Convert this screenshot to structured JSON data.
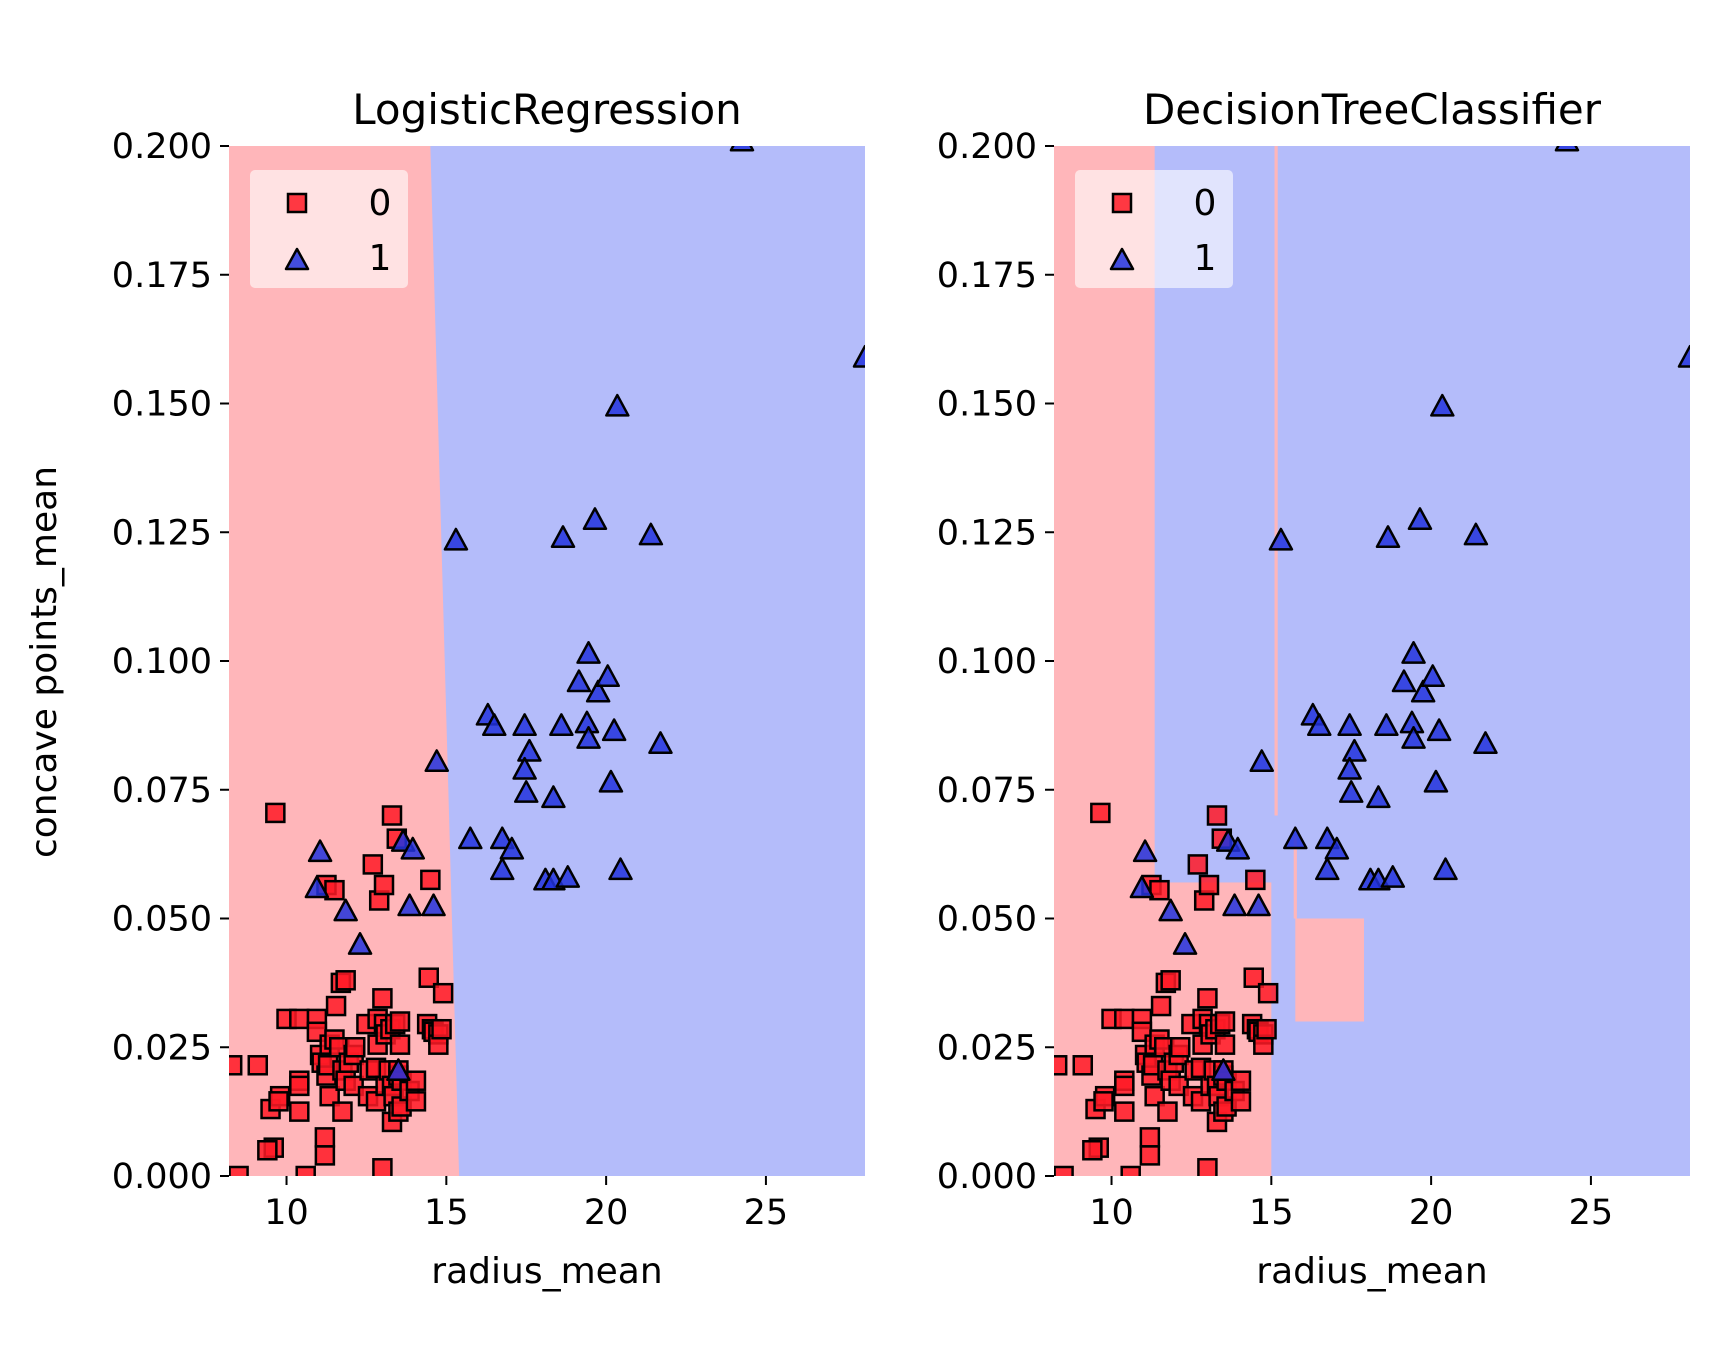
{
  "figure": {
    "ylabel": "concave points_mean"
  },
  "colors": {
    "class0_region": "#ffb6ba",
    "class1_region": "#b4bcfa",
    "class0_marker": "#ff1a26",
    "class1_marker": "#2233dd",
    "marker_edge": "#000000"
  },
  "chart_data": [
    {
      "type": "scatter",
      "title": "LogisticRegression",
      "xlabel": "radius_mean",
      "ylabel": "concave points_mean",
      "xlim": [
        8.2,
        28.1
      ],
      "ylim": [
        0.0,
        0.2
      ],
      "xticks": [
        10,
        15,
        20,
        25
      ],
      "xtick_labels": [
        "10",
        "15",
        "20",
        "25"
      ],
      "yticks": [
        0.0,
        0.025,
        0.05,
        0.075,
        0.1,
        0.125,
        0.15,
        0.175,
        0.2
      ],
      "ytick_labels": [
        "0.000",
        "0.025",
        "0.050",
        "0.075",
        "0.100",
        "0.125",
        "0.150",
        "0.175",
        "0.200"
      ],
      "legend": {
        "placement": "top-left",
        "entries": [
          {
            "label": "0",
            "marker": "square"
          },
          {
            "label": "1",
            "marker": "triangle"
          }
        ]
      },
      "decision_boundary": {
        "description": "class 0 region left of a near-vertical line",
        "boundary_x_at_y0": 15.4,
        "boundary_x_at_ymax": 14.5,
        "class0_regions": []
      }
    },
    {
      "type": "scatter",
      "title": "DecisionTreeClassifier",
      "xlabel": "radius_mean",
      "ylabel": "",
      "xlim": [
        8.2,
        28.1
      ],
      "ylim": [
        0.0,
        0.2
      ],
      "xticks": [
        10,
        15,
        20,
        25
      ],
      "xtick_labels": [
        "10",
        "15",
        "20",
        "25"
      ],
      "yticks": [
        0.0,
        0.025,
        0.05,
        0.075,
        0.1,
        0.125,
        0.15,
        0.175,
        0.2
      ],
      "ytick_labels": [
        "0.000",
        "0.025",
        "0.050",
        "0.075",
        "0.100",
        "0.125",
        "0.150",
        "0.175",
        "0.200"
      ],
      "legend": {
        "placement": "top-left",
        "entries": [
          {
            "label": "0",
            "marker": "square"
          },
          {
            "label": "1",
            "marker": "triangle"
          }
        ]
      },
      "decision_boundary": {
        "description": "axis-aligned class 0 regions",
        "class0_regions": [
          {
            "x": [
              8.2,
              11.35
            ],
            "y": [
              0.0,
              0.2
            ]
          },
          {
            "x": [
              8.2,
              15.0
            ],
            "y": [
              0.0,
              0.057
            ]
          },
          {
            "x": [
              15.75,
              17.9
            ],
            "y": [
              0.03,
              0.05
            ]
          },
          {
            "x": [
              15.1,
              15.2
            ],
            "y": [
              0.07,
              0.2
            ]
          },
          {
            "x": [
              15.7,
              15.8
            ],
            "y": [
              0.05,
              0.066
            ]
          }
        ]
      }
    }
  ],
  "points": {
    "class0": [
      [
        8.3,
        0.0215
      ],
      [
        8.5,
        0.0
      ],
      [
        9.1,
        0.0215
      ],
      [
        9.6,
        0.0055
      ],
      [
        9.65,
        0.0705
      ],
      [
        9.4,
        0.005
      ],
      [
        9.5,
        0.013
      ],
      [
        9.8,
        0.0155
      ],
      [
        9.75,
        0.0145
      ],
      [
        10.0,
        0.0305
      ],
      [
        10.4,
        0.0305
      ],
      [
        10.4,
        0.0185
      ],
      [
        10.4,
        0.0125
      ],
      [
        10.4,
        0.0175
      ],
      [
        10.6,
        0.0
      ],
      [
        10.95,
        0.0305
      ],
      [
        10.95,
        0.028
      ],
      [
        11.05,
        0.0235
      ],
      [
        11.2,
        0.0075
      ],
      [
        11.2,
        0.004
      ],
      [
        11.1,
        0.022
      ],
      [
        11.25,
        0.0195
      ],
      [
        11.3,
        0.0215
      ],
      [
        11.25,
        0.0565
      ],
      [
        11.5,
        0.0555
      ],
      [
        11.35,
        0.0155
      ],
      [
        11.35,
        0.0255
      ],
      [
        11.5,
        0.0265
      ],
      [
        11.55,
        0.033
      ],
      [
        11.65,
        0.025
      ],
      [
        11.7,
        0.0375
      ],
      [
        11.75,
        0.0125
      ],
      [
        11.75,
        0.0205
      ],
      [
        11.85,
        0.038
      ],
      [
        11.85,
        0.0185
      ],
      [
        11.95,
        0.022
      ],
      [
        12.1,
        0.0235
      ],
      [
        12.15,
        0.025
      ],
      [
        12.1,
        0.0175
      ],
      [
        12.5,
        0.0295
      ],
      [
        12.55,
        0.0155
      ],
      [
        12.6,
        0.0205
      ],
      [
        12.7,
        0.0605
      ],
      [
        12.8,
        0.021
      ],
      [
        12.8,
        0.0145
      ],
      [
        12.85,
        0.0255
      ],
      [
        12.85,
        0.0305
      ],
      [
        12.9,
        0.0535
      ],
      [
        13.0,
        0.0015
      ],
      [
        13.0,
        0.0345
      ],
      [
        13.05,
        0.0565
      ],
      [
        13.05,
        0.0295
      ],
      [
        13.1,
        0.0175
      ],
      [
        13.1,
        0.0275
      ],
      [
        13.2,
        0.0205
      ],
      [
        13.25,
        0.0285
      ],
      [
        13.3,
        0.07
      ],
      [
        13.3,
        0.0175
      ],
      [
        13.3,
        0.0105
      ],
      [
        13.35,
        0.0155
      ],
      [
        13.4,
        0.0295
      ],
      [
        13.45,
        0.0655
      ],
      [
        13.5,
        0.0195
      ],
      [
        13.5,
        0.0125
      ],
      [
        13.55,
        0.0255
      ],
      [
        13.6,
        0.0185
      ],
      [
        13.6,
        0.0135
      ],
      [
        13.85,
        0.0165
      ],
      [
        14.05,
        0.0185
      ],
      [
        14.05,
        0.0145
      ],
      [
        14.45,
        0.0385
      ],
      [
        14.4,
        0.0295
      ],
      [
        14.5,
        0.0575
      ],
      [
        14.55,
        0.0285
      ],
      [
        14.6,
        0.028
      ],
      [
        14.75,
        0.0275
      ],
      [
        14.75,
        0.0255
      ],
      [
        14.85,
        0.0285
      ],
      [
        14.9,
        0.0355
      ],
      [
        13.5,
        0.0205
      ],
      [
        13.55,
        0.03
      ]
    ],
    "class1": [
      [
        24.25,
        0.201
      ],
      [
        28.1,
        0.159
      ],
      [
        20.35,
        0.1495
      ],
      [
        15.3,
        0.1235
      ],
      [
        18.65,
        0.124
      ],
      [
        19.65,
        0.1275
      ],
      [
        21.4,
        0.1245
      ],
      [
        19.45,
        0.1015
      ],
      [
        19.15,
        0.096
      ],
      [
        19.75,
        0.094
      ],
      [
        20.05,
        0.097
      ],
      [
        16.3,
        0.0895
      ],
      [
        16.5,
        0.0875
      ],
      [
        17.45,
        0.0875
      ],
      [
        18.6,
        0.0875
      ],
      [
        19.4,
        0.088
      ],
      [
        19.45,
        0.085
      ],
      [
        20.25,
        0.0865
      ],
      [
        21.7,
        0.084
      ],
      [
        17.6,
        0.0825
      ],
      [
        17.45,
        0.079
      ],
      [
        14.7,
        0.0805
      ],
      [
        17.5,
        0.0745
      ],
      [
        18.35,
        0.0735
      ],
      [
        20.15,
        0.0765
      ],
      [
        15.75,
        0.0655
      ],
      [
        16.75,
        0.0655
      ],
      [
        17.05,
        0.0635
      ],
      [
        16.75,
        0.0595
      ],
      [
        18.1,
        0.0575
      ],
      [
        18.35,
        0.0575
      ],
      [
        18.8,
        0.058
      ],
      [
        20.45,
        0.0595
      ],
      [
        11.05,
        0.063
      ],
      [
        10.95,
        0.056
      ],
      [
        11.85,
        0.0515
      ],
      [
        12.3,
        0.045
      ],
      [
        13.65,
        0.065
      ],
      [
        13.95,
        0.0635
      ],
      [
        13.85,
        0.0525
      ],
      [
        14.6,
        0.0525
      ],
      [
        13.5,
        0.0205
      ]
    ]
  }
}
